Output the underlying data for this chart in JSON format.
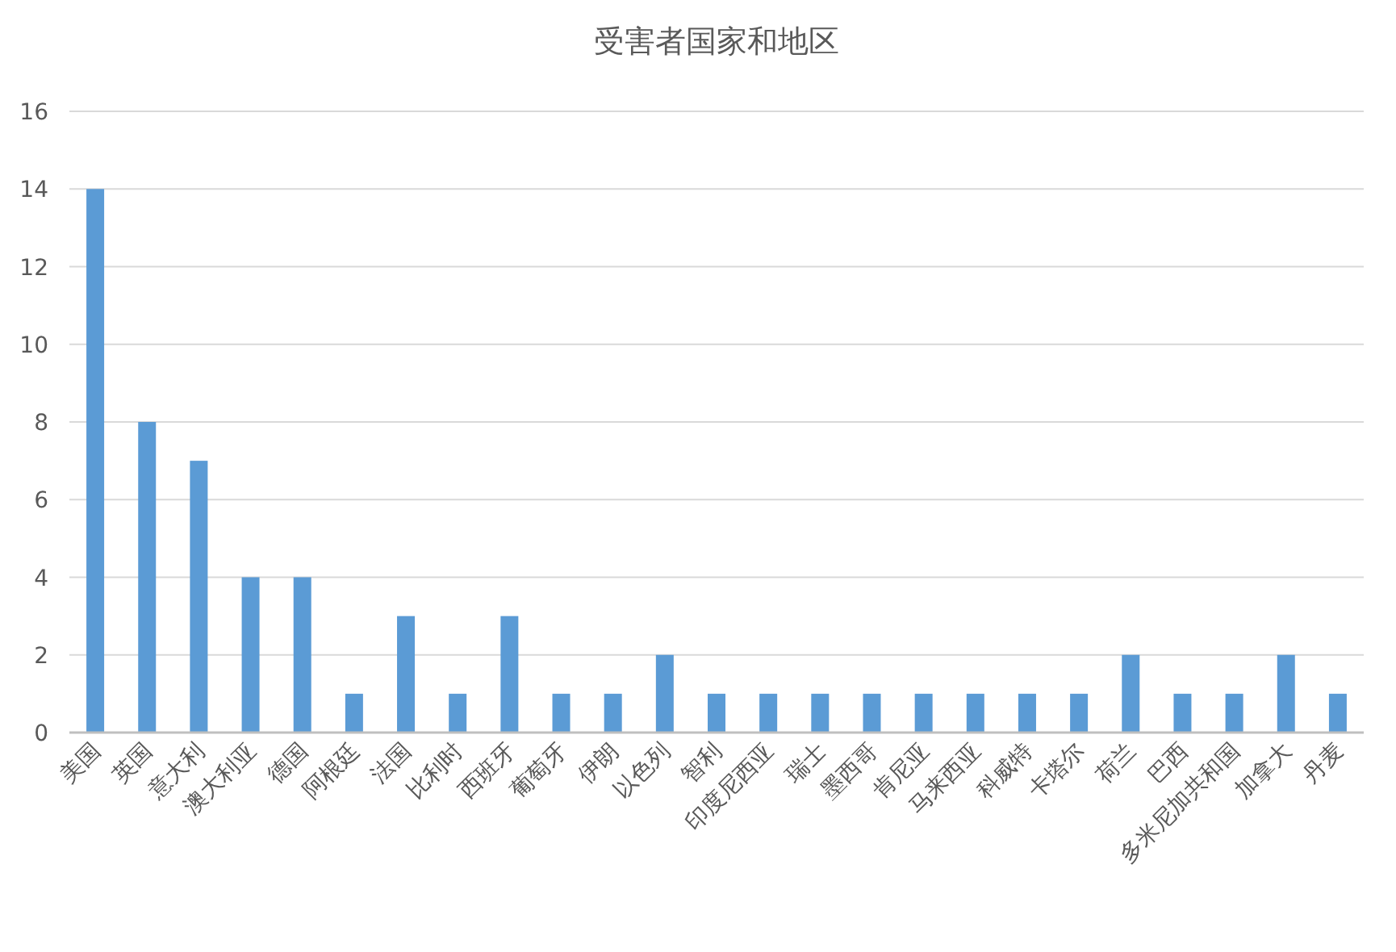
{
  "chart_data": {
    "type": "bar",
    "title": "受害者国家和地区",
    "categories": [
      "美国",
      "英国",
      "意大利",
      "澳大利亚",
      "德国",
      "阿根廷",
      "法国",
      "比利时",
      "西班牙",
      "葡萄牙",
      "伊朗",
      "以色列",
      "智利",
      "印度尼西亚",
      "瑞士",
      "墨西哥",
      "肯尼亚",
      "马来西亚",
      "科威特",
      "卡塔尔",
      "荷兰",
      "巴西",
      "多米尼加共和国",
      "加拿大",
      "丹麦"
    ],
    "values": [
      14,
      8,
      7,
      4,
      4,
      1,
      3,
      1,
      3,
      1,
      1,
      2,
      1,
      1,
      1,
      1,
      1,
      1,
      1,
      1,
      2,
      1,
      1,
      2,
      1
    ],
    "color": "#5b9bd5",
    "ylim": [
      0,
      16
    ],
    "yticks": [
      0,
      2,
      4,
      6,
      8,
      10,
      12,
      14,
      16
    ],
    "grid": "y"
  }
}
